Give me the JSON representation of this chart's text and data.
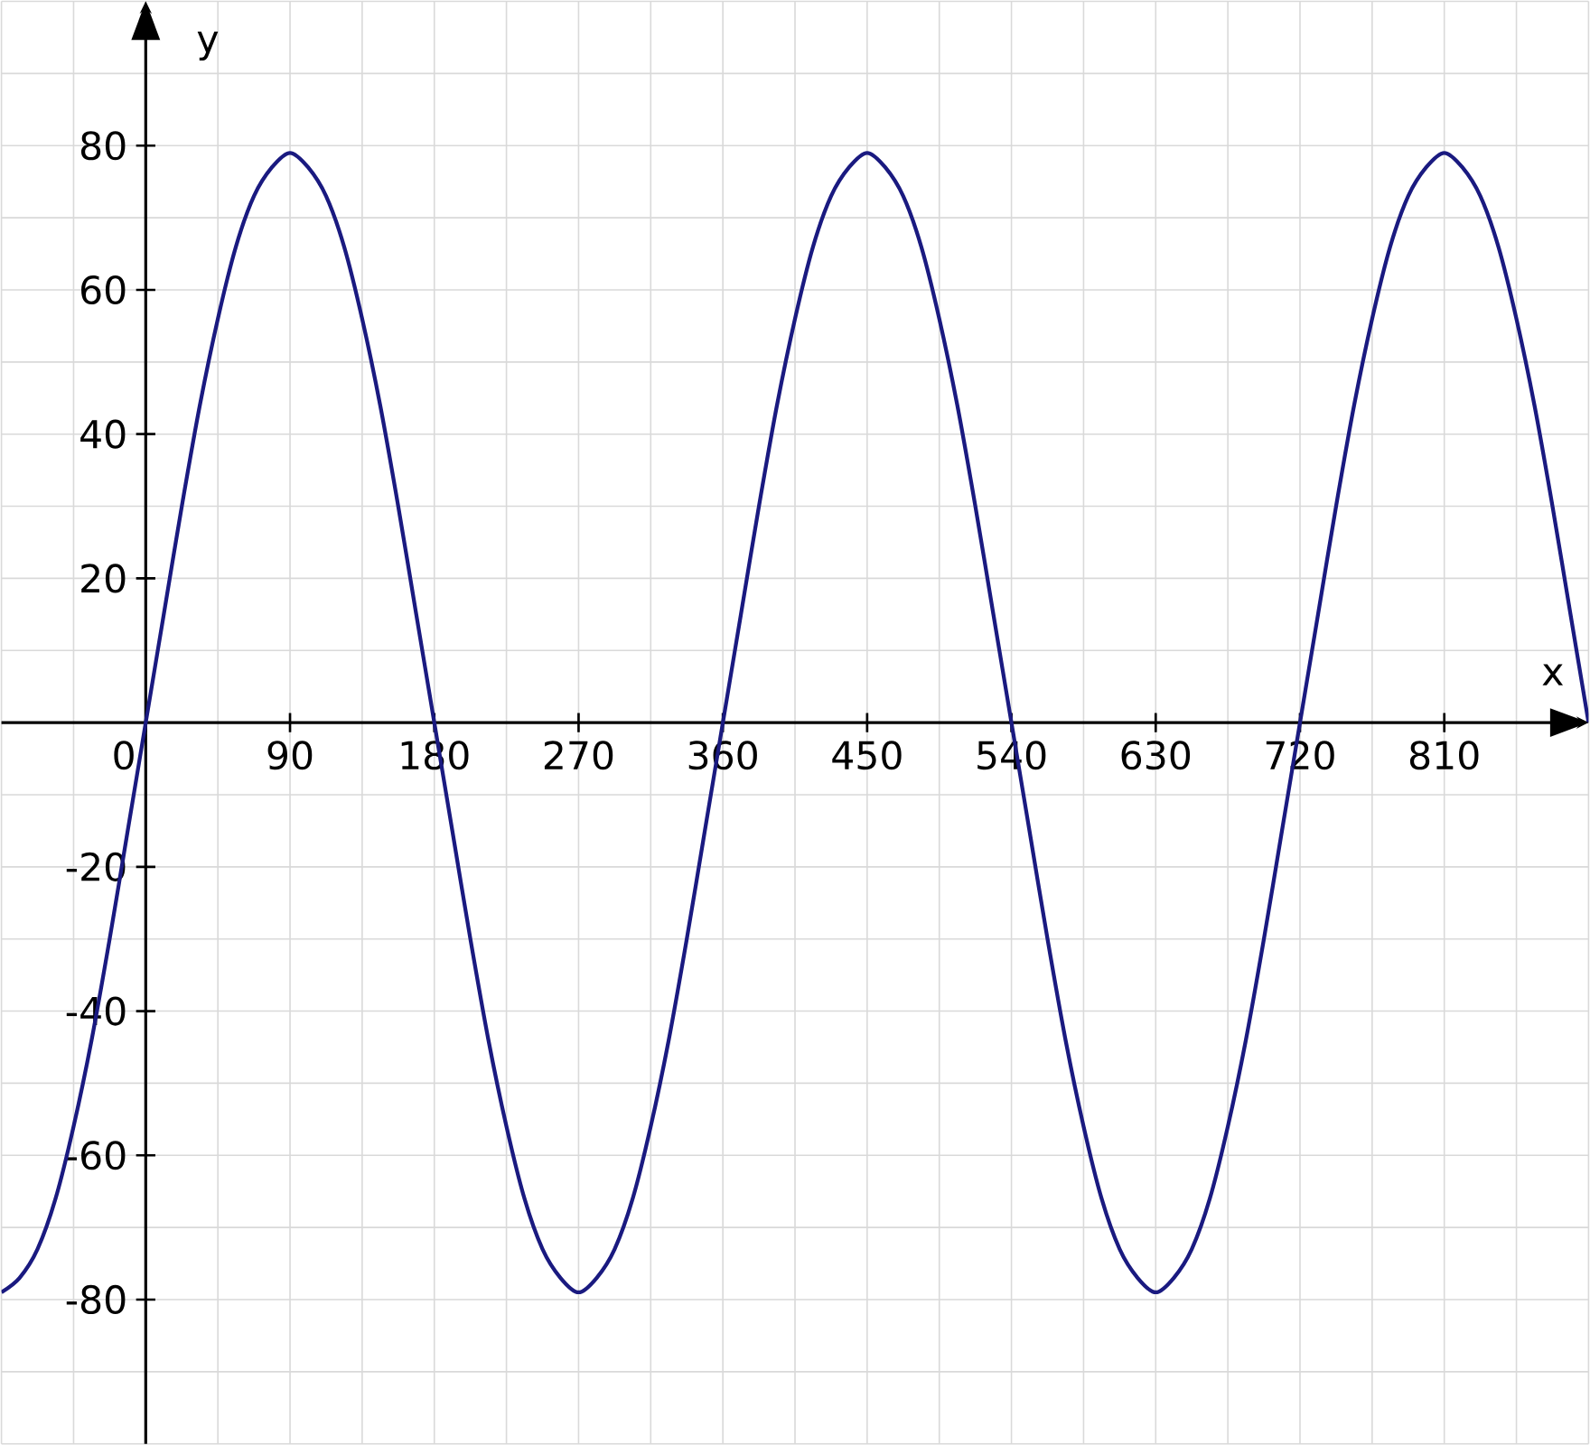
{
  "chart_data": {
    "type": "line",
    "xlabel": "x",
    "ylabel": "y",
    "xlim": [
      -90,
      900
    ],
    "ylim": [
      -100,
      100
    ],
    "xticks": [
      {
        "value": 0,
        "label": "0"
      },
      90,
      180,
      270,
      360,
      450,
      540,
      630,
      720,
      810
    ],
    "yticks": [
      -80,
      -60,
      -40,
      -20,
      20,
      40,
      60,
      80
    ],
    "grid": true,
    "marker": "none",
    "line_style": "solid",
    "series": [
      {
        "color": "#1a1a80",
        "x": [
          -90,
          -78.75,
          -67.5,
          -56.25,
          -45,
          -33.75,
          -22.5,
          -11.25,
          0,
          11.25,
          22.5,
          33.75,
          45,
          56.25,
          67.5,
          78.75,
          90,
          101.25,
          112.5,
          123.75,
          135,
          146.25,
          157.5,
          168.75,
          180,
          191.25,
          202.5,
          213.75,
          225,
          236.25,
          247.5,
          258.75,
          270,
          281.25,
          292.5,
          303.75,
          315,
          326.25,
          337.5,
          348.75,
          360,
          371.25,
          382.5,
          393.75,
          405,
          416.25,
          427.5,
          438.75,
          450,
          461.25,
          472.5,
          483.75,
          495,
          506.25,
          517.5,
          528.75,
          540,
          551.25,
          562.5,
          573.75,
          585,
          596.25,
          607.5,
          618.75,
          630,
          641.25,
          652.5,
          663.75,
          675,
          686.25,
          697.5,
          708.75,
          720,
          731.25,
          742.5,
          753.75,
          765,
          776.25,
          787.5,
          798.75,
          810,
          821.25,
          832.5,
          843.75,
          855,
          866.25,
          877.5,
          888.75,
          900
        ],
        "values": [
          -79,
          -77,
          -73,
          -66,
          -56,
          -44,
          -30,
          -15,
          0,
          15,
          30,
          44,
          56,
          66,
          73,
          77,
          79,
          77,
          73,
          66,
          56,
          44,
          30,
          15,
          0,
          -15,
          -30,
          -44,
          -56,
          -66,
          -73,
          -77,
          -79,
          -77,
          -73,
          -66,
          -56,
          -44,
          -30,
          -15,
          0,
          15,
          30,
          44,
          56,
          66,
          73,
          77,
          79,
          77,
          73,
          66,
          56,
          44,
          30,
          15,
          0,
          -15,
          -30,
          -44,
          -56,
          -66,
          -73,
          -77,
          -79,
          -77,
          -73,
          -66,
          -56,
          -44,
          -30,
          -15,
          0,
          15,
          30,
          44,
          56,
          66,
          73,
          77,
          79,
          77,
          73,
          66,
          56,
          44,
          30,
          15,
          0
        ]
      }
    ]
  }
}
